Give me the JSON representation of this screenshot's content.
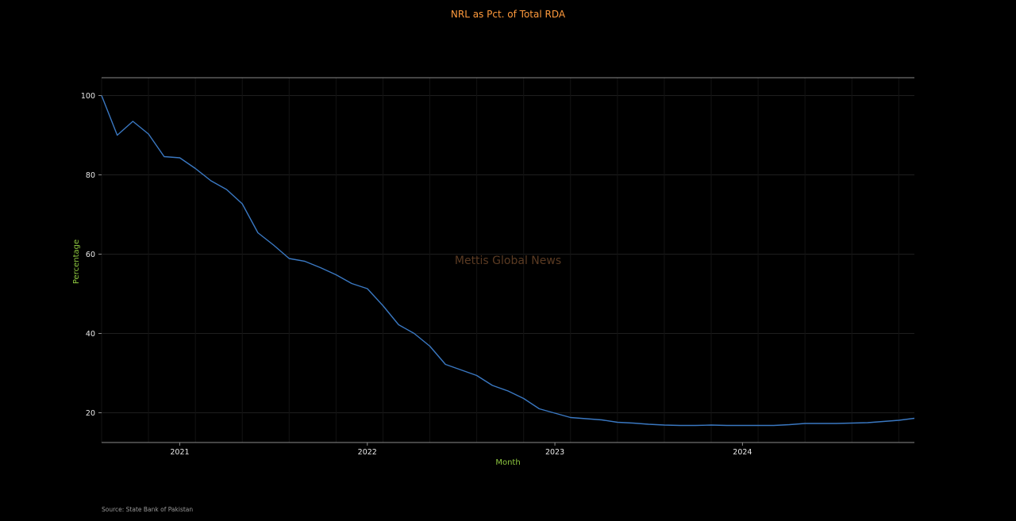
{
  "chart_data": {
    "type": "line",
    "title": "NRL as Pct. of Total RDA",
    "xlabel": "Month",
    "ylabel": "Percentage",
    "watermark": "Mettis Global News",
    "source": "Source: State Bank of Pakistan",
    "ylim": [
      12.5,
      104.5
    ],
    "yticks": [
      20,
      40,
      60,
      80,
      100
    ],
    "xlim": [
      "2020-08",
      "2024-12"
    ],
    "xticks": [
      "2021",
      "2022",
      "2023",
      "2024"
    ],
    "grid": true,
    "colors": {
      "line": "#3a78c2",
      "title": "#ff9a3c",
      "axis_label": "#8dc63f"
    },
    "series": [
      {
        "x": [
          "2020-08",
          "2020-09",
          "2020-10",
          "2020-11",
          "2020-12",
          "2021-01",
          "2021-02",
          "2021-03",
          "2021-04",
          "2021-05",
          "2021-06",
          "2021-07",
          "2021-08",
          "2021-09",
          "2021-10",
          "2021-11",
          "2021-12",
          "2022-01",
          "2022-02",
          "2022-03",
          "2022-04",
          "2022-05",
          "2022-06",
          "2022-07",
          "2022-08",
          "2022-09",
          "2022-10",
          "2022-11",
          "2022-12",
          "2023-01",
          "2023-02",
          "2023-03",
          "2023-04",
          "2023-05",
          "2023-06",
          "2023-07",
          "2023-08",
          "2023-09",
          "2023-10",
          "2023-11",
          "2023-12",
          "2024-01",
          "2024-02",
          "2024-03",
          "2024-04",
          "2024-05",
          "2024-06",
          "2024-07",
          "2024-08",
          "2024-09",
          "2024-10",
          "2024-11",
          "2024-12"
        ],
        "values": [
          100,
          90,
          93.5,
          90.3,
          84.6,
          84.3,
          81.6,
          78.5,
          76.3,
          72.7,
          65.4,
          62.3,
          58.9,
          58.2,
          56.6,
          54.8,
          52.6,
          51.3,
          47.0,
          42.2,
          40.0,
          36.8,
          32.2,
          30.8,
          29.4,
          26.9,
          25.5,
          23.6,
          21.0,
          19.9,
          18.8,
          18.5,
          18.2,
          17.6,
          17.4,
          17.1,
          16.9,
          16.8,
          16.8,
          16.9,
          16.8,
          16.8,
          16.8,
          16.8,
          17.0,
          17.3,
          17.3,
          17.3,
          17.4,
          17.5,
          17.8,
          18.1,
          18.6
        ]
      }
    ]
  }
}
